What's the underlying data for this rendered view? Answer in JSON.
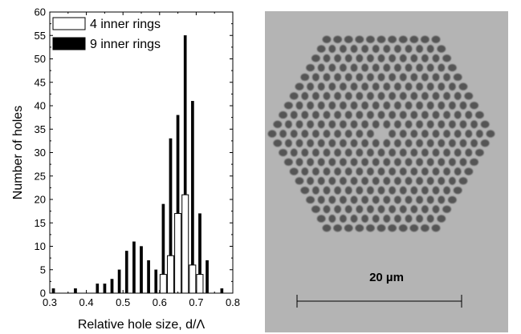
{
  "chart_data": {
    "type": "bar",
    "xlabel": "Relative hole size, d/Λ",
    "ylabel": "Number of holes",
    "xlim": [
      0.3,
      0.8
    ],
    "ylim": [
      0,
      60
    ],
    "x_ticks": [
      "0.3",
      "0.4",
      "0.5",
      "0.6",
      "0.7",
      "0.8"
    ],
    "y_ticks": [
      "0",
      "5",
      "10",
      "15",
      "20",
      "25",
      "30",
      "35",
      "40",
      "45",
      "50",
      "55",
      "60"
    ],
    "legend_position": "top-left",
    "series": [
      {
        "name": "9 inner rings",
        "style": "filled",
        "color": "#000000",
        "x": [
          0.31,
          0.37,
          0.43,
          0.45,
          0.47,
          0.49,
          0.51,
          0.53,
          0.55,
          0.57,
          0.59,
          0.61,
          0.63,
          0.65,
          0.67,
          0.69,
          0.71,
          0.73,
          0.77
        ],
        "values": [
          1,
          1,
          2,
          2,
          3,
          5,
          9,
          11,
          10,
          7,
          5,
          19,
          33,
          38,
          55,
          41,
          17,
          7,
          1
        ]
      },
      {
        "name": "4 inner rings",
        "style": "open",
        "color": "#ffffff",
        "x": [
          0.61,
          0.63,
          0.65,
          0.67,
          0.69,
          0.71
        ],
        "values": [
          4,
          8,
          17,
          21,
          6,
          4
        ]
      }
    ]
  },
  "micrograph": {
    "scale_bar_label": "20 µm",
    "background": "#b4b4b4",
    "hole_color": "#555555",
    "rings": 9
  }
}
